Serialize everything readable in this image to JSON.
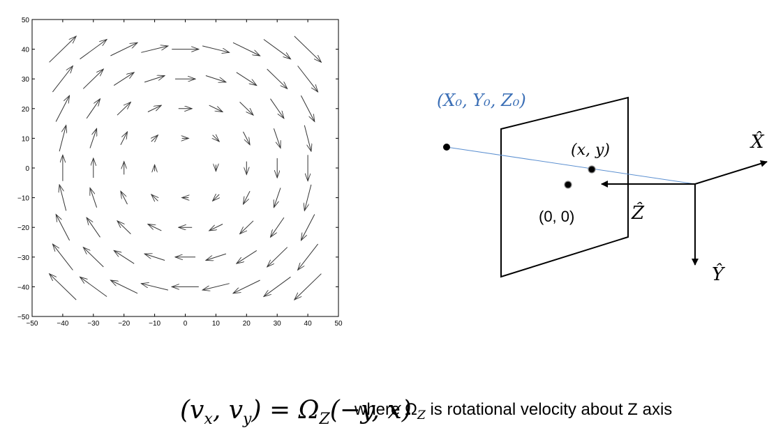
{
  "chart_data": {
    "type": "quiver",
    "field": "rotational",
    "xlim": [
      -50,
      50
    ],
    "ylim": [
      -50,
      50
    ],
    "xticks": [
      -50,
      -40,
      -30,
      -20,
      -10,
      0,
      10,
      20,
      30,
      40,
      50
    ],
    "yticks": [
      50,
      40,
      30,
      20,
      10,
      0,
      -10,
      -20,
      -30,
      -40,
      -50
    ],
    "xtick_labels": [
      "−50",
      "−40",
      "−30",
      "−20",
      "−10",
      "0",
      "10",
      "20",
      "30",
      "40",
      "50"
    ],
    "ytick_labels": [
      "50",
      "40",
      "30",
      "20",
      "10",
      "0",
      "−10",
      "−20",
      "−30",
      "−40",
      "−50"
    ],
    "grid_x": [
      -40,
      -30,
      -20,
      -10,
      0,
      10,
      20,
      30,
      40
    ],
    "grid_y": [
      40,
      30,
      20,
      10,
      0,
      -10,
      -20,
      -30,
      -40
    ],
    "arrow_scale": 0.22,
    "grid": false
  },
  "diagram": {
    "world_point_label": "(X₀, Y₀, Z₀)",
    "image_point_label": "(x, y)",
    "origin_label": "(0, 0)",
    "axis_x_label": "X̂",
    "axis_y_label": "Ŷ",
    "axis_z_label": "Ẑ",
    "world_point_color": "#3b6fb6",
    "ray_color": "#5b8fd0"
  },
  "equation": {
    "lhs": "(v",
    "sub_x": "x",
    "comma": ", v",
    "sub_y": "y",
    "eq": ") = Ω",
    "sub_z": "Z",
    "rhs": "(−y, x)",
    "caption_pre": "where Ω",
    "caption_sub": "Z",
    "caption_post": " is rotational velocity about Z axis"
  }
}
